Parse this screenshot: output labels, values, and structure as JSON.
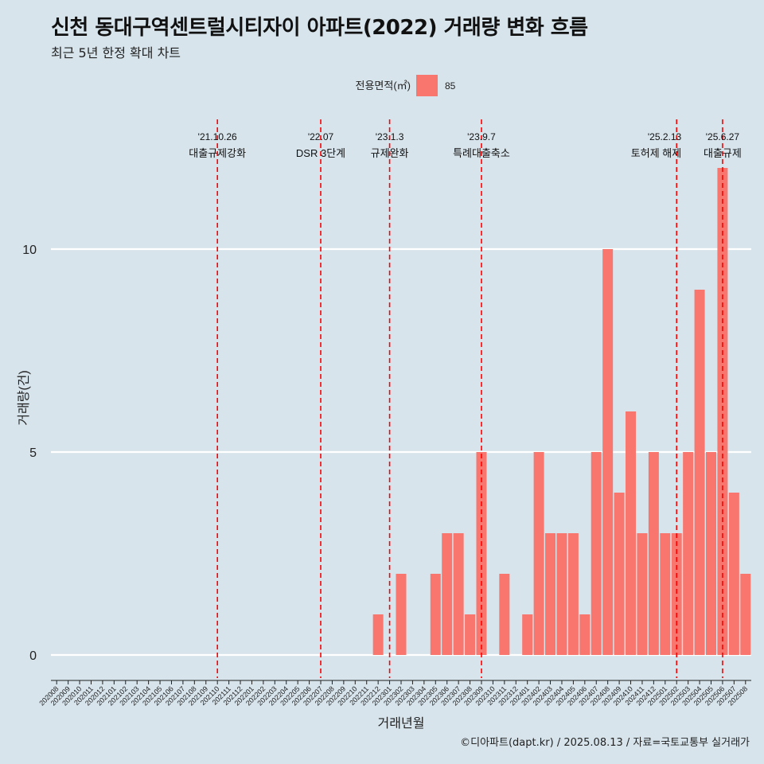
{
  "title": "신천 동대구역센트럴시티자이 아파트(2022) 거래량 변화 흐름",
  "subtitle": "최근 5년 한정 확대 차트",
  "caption": "©디아파트(dapt.kr) / 2025.08.13 / 자료=국토교통부 실거래가",
  "colors": {
    "bar": "#f8766d",
    "background": "#d7e4ec",
    "grid": "#ffffff",
    "event_line": "#ff0000"
  },
  "chart_data": {
    "type": "bar",
    "title": "신천 동대구역센트럴시티자이 아파트(2022) 거래량 변화 흐름",
    "subtitle": "최근 5년 한정 확대 차트",
    "xlabel": "거래년월",
    "ylabel": "거래량(건)",
    "ylim": [
      0,
      12
    ],
    "yticks": [
      0,
      5,
      10
    ],
    "grid": "horizontal major lines",
    "legend": {
      "title": "전용면적(㎡)",
      "position": "top",
      "entries": [
        "85"
      ]
    },
    "categories": [
      "202008",
      "202009",
      "202010",
      "202011",
      "202012",
      "202101",
      "202102",
      "202103",
      "202104",
      "202105",
      "202106",
      "202107",
      "202108",
      "202109",
      "202110",
      "202111",
      "202112",
      "202201",
      "202202",
      "202203",
      "202204",
      "202205",
      "202206",
      "202207",
      "202208",
      "202209",
      "202210",
      "202211",
      "202212",
      "202301",
      "202302",
      "202303",
      "202304",
      "202305",
      "202306",
      "202307",
      "202308",
      "202309",
      "202310",
      "202311",
      "202312",
      "202401",
      "202402",
      "202403",
      "202404",
      "202405",
      "202406",
      "202407",
      "202408",
      "202409",
      "202410",
      "202411",
      "202412",
      "202501",
      "202502",
      "202503",
      "202504",
      "202505",
      "202506",
      "202507",
      "202508"
    ],
    "series": [
      {
        "name": "85",
        "values": [
          0,
          0,
          0,
          0,
          0,
          0,
          0,
          0,
          0,
          0,
          0,
          0,
          0,
          0,
          0,
          0,
          0,
          0,
          0,
          0,
          0,
          0,
          0,
          0,
          0,
          0,
          0,
          0,
          1,
          0,
          2,
          0,
          0,
          2,
          3,
          3,
          1,
          5,
          0,
          2,
          0,
          1,
          5,
          3,
          3,
          3,
          1,
          5,
          10,
          4,
          6,
          3,
          5,
          3,
          3,
          5,
          9,
          5,
          12,
          4,
          2
        ]
      }
    ],
    "events": [
      {
        "date": "'21.10.26",
        "label": "대출규제강화",
        "category": "202110"
      },
      {
        "date": "'22.07",
        "label": "DSR 3단계",
        "category": "202207"
      },
      {
        "date": "'23.1.3",
        "label": "규제완화",
        "category": "202301"
      },
      {
        "date": "'23.9.7",
        "label": "특례대출축소",
        "category": "202309"
      },
      {
        "date": "'25.2.13",
        "label": "토허제 해제",
        "category": "202502"
      },
      {
        "date": "'25.6.27",
        "label": "대출규제",
        "category": "202506"
      }
    ]
  }
}
